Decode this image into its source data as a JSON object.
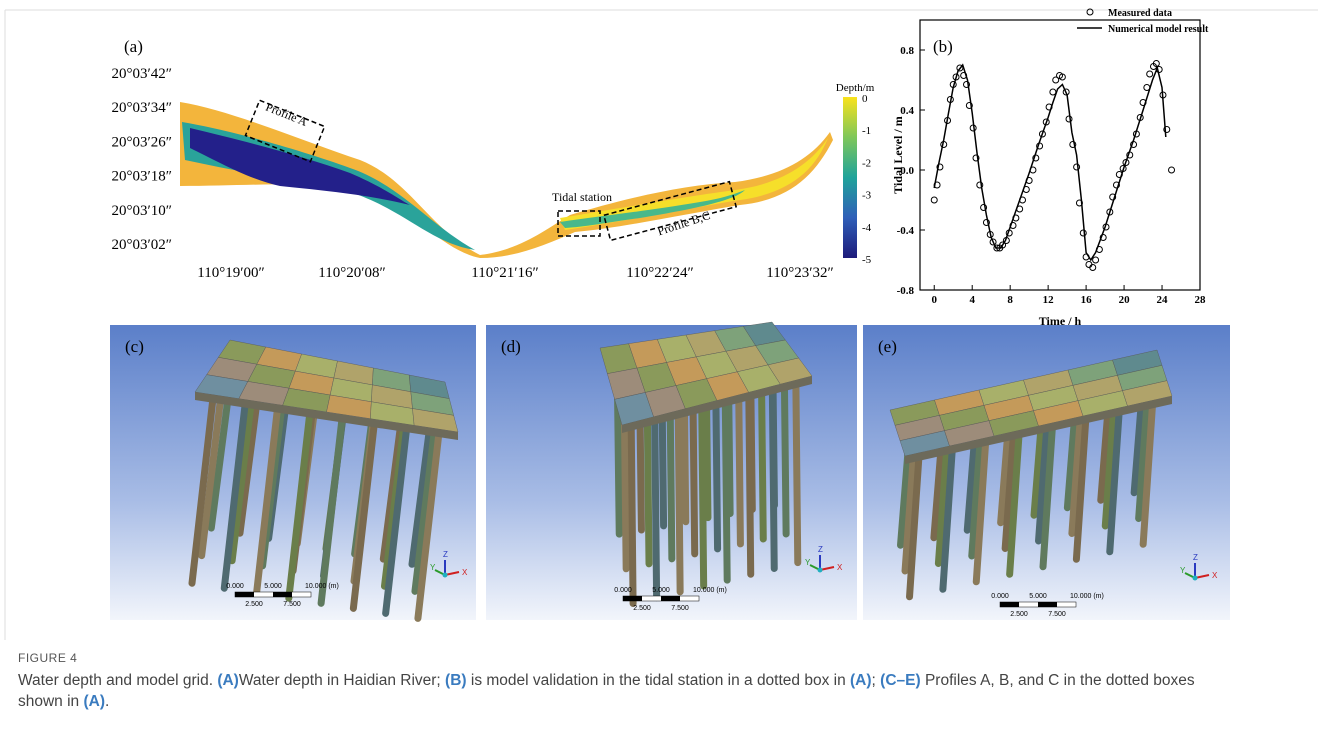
{
  "figure": {
    "panel_a": {
      "label": "(a)",
      "lat_labels": [
        "20°03′42″",
        "20°03′34″",
        "20°03′26″",
        "20°03′18″",
        "20°03′10″",
        "20°03′02″"
      ],
      "lon_labels": [
        "110°19′00″",
        "110°20′08″",
        "110°21′16″",
        "110°22′24″",
        "110°23′32″"
      ],
      "colorbar": {
        "title": "Depth/m",
        "ticks": [
          0,
          -1,
          -2,
          -3,
          -4,
          -5
        ]
      },
      "annotations": [
        "Profile A",
        "Tidal station",
        "Profile B,C"
      ]
    },
    "panels_3d": [
      {
        "label": "(c)",
        "scale_labels": [
          "0.000",
          "5.000",
          "10.000 (m)",
          "2.500",
          "7.500"
        ],
        "axes": [
          "Y",
          "Z",
          "X"
        ]
      },
      {
        "label": "(d)",
        "scale_labels": [
          "0.000",
          "5.000",
          "10.000 (m)",
          "2.500",
          "7.500"
        ],
        "axes": [
          "Y",
          "Z",
          "X"
        ]
      },
      {
        "label": "(e)",
        "scale_labels": [
          "0.000",
          "5.000",
          "10.000 (m)",
          "2.500",
          "7.500"
        ],
        "axes": [
          "Y",
          "Z",
          "X"
        ]
      }
    ],
    "caption": {
      "figure_label": "FIGURE 4",
      "segments": [
        {
          "text": "Water depth and model grid. ",
          "bold": false
        },
        {
          "text": "(A)",
          "bold": true
        },
        {
          "text": "Water depth in Haidian River; ",
          "bold": false
        },
        {
          "text": "(B)",
          "bold": true
        },
        {
          "text": " is model validation in the tidal station in a dotted box in ",
          "bold": false
        },
        {
          "text": "(A)",
          "bold": true
        },
        {
          "text": "; ",
          "bold": false
        },
        {
          "text": "(C–E)",
          "bold": true
        },
        {
          "text": " Profiles A, B, and C in the dotted boxes shown in ",
          "bold": false
        },
        {
          "text": "(A)",
          "bold": true
        },
        {
          "text": ".",
          "bold": false
        }
      ]
    }
  },
  "chart_data": {
    "type": "scatter",
    "label": "(b)",
    "x_label": "Time / h",
    "y_label": "Tidal Level / m",
    "xlim": [
      -1.5,
      28
    ],
    "ylim": [
      -0.8,
      1.0
    ],
    "xticks": [
      0,
      4,
      8,
      12,
      16,
      20,
      24,
      28
    ],
    "yticks": [
      -0.8,
      -0.4,
      {
        "value": 0,
        "label": "0.0"
      },
      0.4,
      0.8
    ],
    "legend": "top-right",
    "series": [
      {
        "name": "Measured data",
        "style": "circle",
        "color": "#000000",
        "x": [
          0,
          0.3,
          0.6,
          1.0,
          1.4,
          1.7,
          2.0,
          2.3,
          2.7,
          3.1,
          3.4,
          3.7,
          4.1,
          4.4,
          4.8,
          5.2,
          5.5,
          5.9,
          6.2,
          6.6,
          6.9,
          7.2,
          7.6,
          7.9,
          8.3,
          8.6,
          9.0,
          9.3,
          9.7,
          10.0,
          10.4,
          10.7,
          11.1,
          11.4,
          11.8,
          12.1,
          12.5,
          12.8,
          13.2,
          13.5,
          13.9,
          14.2,
          14.6,
          15.0,
          15.3,
          15.7,
          16.0,
          16.3,
          16.7,
          17.0,
          17.4,
          17.8,
          18.1,
          18.5,
          18.8,
          19.2,
          19.5,
          19.9,
          20.2,
          20.6,
          21.0,
          21.3,
          21.7,
          22.0,
          22.4,
          22.7,
          23.1,
          23.4,
          23.7,
          24.1,
          24.5,
          25.0
        ],
        "values": [
          -0.2,
          -0.1,
          0.02,
          0.17,
          0.33,
          0.47,
          0.57,
          0.62,
          0.68,
          0.63,
          0.57,
          0.43,
          0.28,
          0.08,
          -0.1,
          -0.25,
          -0.35,
          -0.43,
          -0.48,
          -0.52,
          -0.52,
          -0.5,
          -0.47,
          -0.42,
          -0.37,
          -0.32,
          -0.26,
          -0.2,
          -0.13,
          -0.07,
          0.0,
          0.08,
          0.16,
          0.24,
          0.32,
          0.42,
          0.52,
          0.6,
          0.63,
          0.62,
          0.52,
          0.34,
          0.17,
          0.02,
          -0.22,
          -0.42,
          -0.58,
          -0.63,
          -0.65,
          -0.6,
          -0.53,
          -0.45,
          -0.38,
          -0.28,
          -0.18,
          -0.1,
          -0.03,
          0.01,
          0.05,
          0.1,
          0.17,
          0.24,
          0.35,
          0.45,
          0.55,
          0.64,
          0.69,
          0.71,
          0.67,
          0.5,
          0.27,
          0.0
        ]
      },
      {
        "name": "Numerical model result",
        "style": "line",
        "color": "#000000",
        "x": [
          0,
          0.5,
          1,
          1.5,
          2,
          2.5,
          3,
          3.5,
          4,
          4.5,
          5,
          5.5,
          6,
          6.5,
          7,
          7.5,
          8,
          9,
          10,
          11,
          12,
          12.5,
          13,
          13.5,
          14,
          14.5,
          15,
          15.5,
          16,
          16.5,
          17,
          18,
          19,
          20,
          21,
          22,
          23,
          23.5,
          24,
          24.4
        ],
        "values": [
          -0.12,
          0.05,
          0.2,
          0.38,
          0.55,
          0.66,
          0.7,
          0.6,
          0.38,
          0.12,
          -0.12,
          -0.3,
          -0.45,
          -0.52,
          -0.52,
          -0.47,
          -0.38,
          -0.2,
          -0.02,
          0.17,
          0.35,
          0.45,
          0.54,
          0.57,
          0.5,
          0.25,
          0.1,
          -0.2,
          -0.55,
          -0.6,
          -0.55,
          -0.38,
          -0.18,
          0.02,
          0.2,
          0.4,
          0.6,
          0.68,
          0.55,
          0.22
        ]
      }
    ]
  }
}
